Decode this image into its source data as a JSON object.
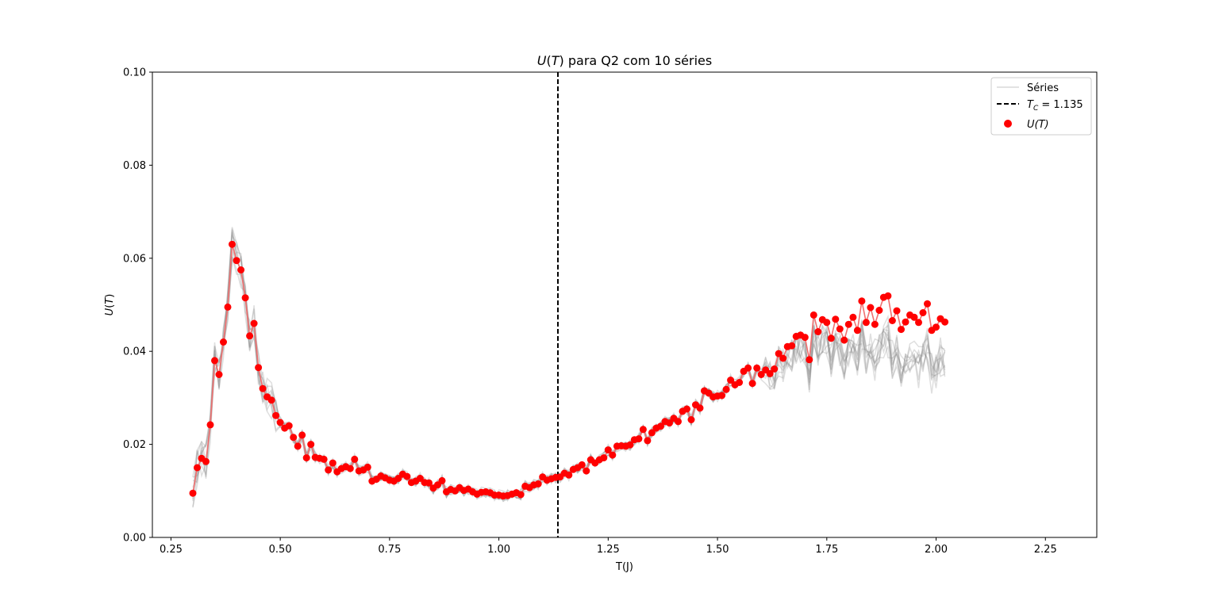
{
  "chart_data": {
    "type": "line",
    "title": "U(T) para Q2 com 10 séries",
    "title_parts": {
      "var": "U",
      "open": "(",
      "arg": "T",
      "close": ")",
      "rest": " para Q2 com 10 séries"
    },
    "xlabel": "T(J)",
    "ylabel": "U(T)",
    "ylabel_parts": {
      "var": "U",
      "open": "(",
      "arg": "T",
      "close": ")"
    },
    "xlim": [
      0.2075,
      2.3675
    ],
    "ylim": [
      0.0,
      0.1
    ],
    "x_ticks": [
      0.25,
      0.5,
      0.75,
      1.0,
      1.25,
      1.5,
      1.75,
      2.0,
      2.25
    ],
    "x_tick_labels": [
      "0.25",
      "0.50",
      "0.75",
      "1.00",
      "1.25",
      "1.50",
      "1.75",
      "2.00",
      "2.25"
    ],
    "y_ticks": [
      0.0,
      0.02,
      0.04,
      0.06,
      0.08,
      0.1
    ],
    "y_tick_labels": [
      "0.00",
      "0.02",
      "0.04",
      "0.06",
      "0.08",
      "0.10"
    ],
    "grid": false,
    "legend_position": "top-right",
    "legend": {
      "series_label": "Séries",
      "tc_label_sym": "T",
      "tc_label_sub": "C",
      "tc_label_rest": " = 1.135",
      "mean_label": "U(T)"
    },
    "tc": 1.135,
    "colors": {
      "series": "#808080",
      "mean_line": "#f07070",
      "mean_points": "#ff0000",
      "tc_line": "#000000"
    },
    "x_start": 0.3,
    "x_step": 0.01,
    "mean_values": [
      0.0095,
      0.015,
      0.017,
      0.0163,
      0.0242,
      0.038,
      0.035,
      0.042,
      0.0495,
      0.063,
      0.0595,
      0.0575,
      0.0515,
      0.0433,
      0.046,
      0.0365,
      0.032,
      0.0302,
      0.0295,
      0.0262,
      0.0247,
      0.0235,
      0.024,
      0.0215,
      0.0196,
      0.022,
      0.0171,
      0.02,
      0.0172,
      0.017,
      0.0168,
      0.0145,
      0.016,
      0.0141,
      0.0148,
      0.0152,
      0.0148,
      0.0168,
      0.0143,
      0.0145,
      0.0151,
      0.0121,
      0.0125,
      0.0132,
      0.0128,
      0.0123,
      0.0121,
      0.0127,
      0.0136,
      0.0131,
      0.0118,
      0.0121,
      0.0127,
      0.0118,
      0.0117,
      0.0106,
      0.0113,
      0.0122,
      0.0098,
      0.0103,
      0.01,
      0.0107,
      0.0101,
      0.0104,
      0.0098,
      0.0093,
      0.0097,
      0.0098,
      0.0096,
      0.0091,
      0.0091,
      0.0089,
      0.009,
      0.0093,
      0.0096,
      0.0092,
      0.011,
      0.0107,
      0.0113,
      0.0115,
      0.013,
      0.0123,
      0.0126,
      0.0129,
      0.013,
      0.0138,
      0.0134,
      0.0146,
      0.015,
      0.0156,
      0.0143,
      0.0167,
      0.016,
      0.0167,
      0.0171,
      0.0188,
      0.0177,
      0.0196,
      0.0197,
      0.0196,
      0.0199,
      0.021,
      0.0212,
      0.0232,
      0.0208,
      0.0225,
      0.0235,
      0.0239,
      0.0249,
      0.0246,
      0.0256,
      0.0249,
      0.0271,
      0.0276,
      0.0253,
      0.0285,
      0.0278,
      0.0315,
      0.031,
      0.0302,
      0.0304,
      0.0305,
      0.0318,
      0.0338,
      0.0328,
      0.0333,
      0.0357,
      0.0364,
      0.0331,
      0.0364,
      0.035,
      0.036,
      0.0352,
      0.0362,
      0.0395,
      0.0385,
      0.041,
      0.0412,
      0.0432,
      0.0435,
      0.043,
      0.0382,
      0.0478,
      0.0442,
      0.0468,
      0.0462,
      0.0428,
      0.0469,
      0.0448,
      0.0424,
      0.0458,
      0.0473,
      0.0445,
      0.0508,
      0.0462,
      0.0494,
      0.0458,
      0.0488,
      0.0516,
      0.0519,
      0.0466,
      0.0487,
      0.0447,
      0.0463,
      0.0478,
      0.0473,
      0.0462,
      0.0483,
      0.0502,
      0.0445,
      0.0452,
      0.047,
      0.0463
    ],
    "series_count": 10,
    "series_band": {
      "description_x_ranges": "ten noisy replicate series that track the mean below T=1.3 and lie below it (about 0.034-0.040) above T=1.9",
      "upper_mean_offset_x_start": 1.6
    }
  }
}
